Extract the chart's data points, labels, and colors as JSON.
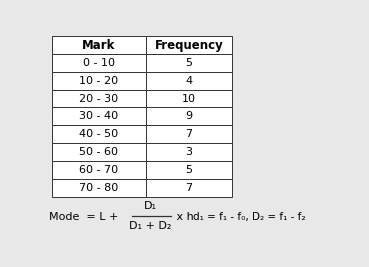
{
  "headers": [
    "Mark",
    "Frequency"
  ],
  "rows": [
    [
      "0 - 10",
      "5"
    ],
    [
      "10 - 20",
      "4"
    ],
    [
      "20 - 30",
      "10"
    ],
    [
      "30 - 40",
      "9"
    ],
    [
      "40 - 50",
      "7"
    ],
    [
      "50 - 60",
      "3"
    ],
    [
      "60 - 70",
      "5"
    ],
    [
      "70 - 80",
      "7"
    ]
  ],
  "bg_color": "#e8e8e8",
  "table_bg": "#ffffff",
  "border_color": "#333333",
  "text_color": "#000000",
  "font_size": 8,
  "header_font_size": 8.5
}
